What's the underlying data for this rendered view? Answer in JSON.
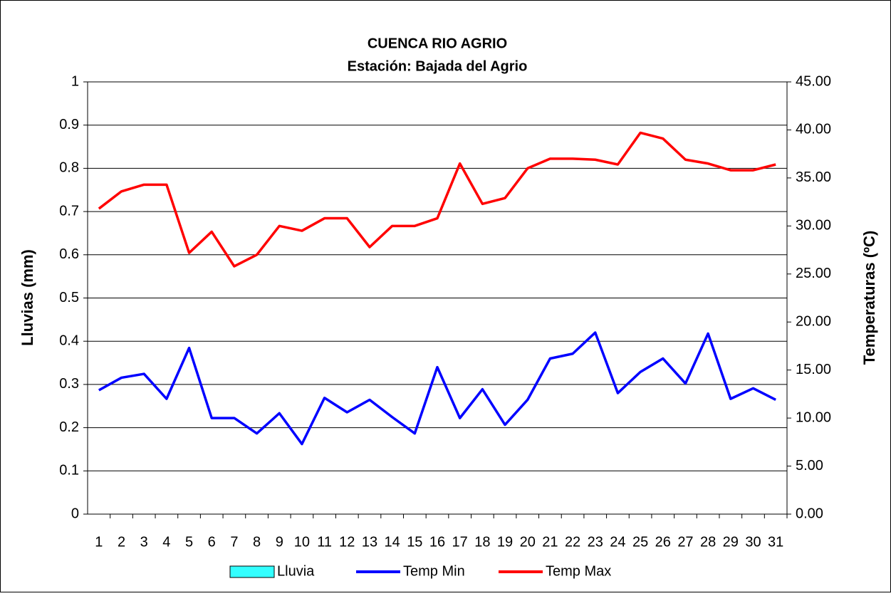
{
  "chart_data": {
    "type": "bar_line",
    "title": "CUENCA RIO AGRIO",
    "subtitle": "Estación: Bajada del Agrio",
    "ylabel": "Lluvias (mm)",
    "y2label": "Temperaturas (ºC)",
    "categories": [
      "1",
      "2",
      "3",
      "4",
      "5",
      "6",
      "7",
      "8",
      "9",
      "10",
      "11",
      "12",
      "13",
      "14",
      "15",
      "16",
      "17",
      "18",
      "19",
      "20",
      "21",
      "22",
      "23",
      "24",
      "25",
      "26",
      "27",
      "28",
      "29",
      "30",
      "31"
    ],
    "ylim": [
      0,
      1
    ],
    "yticks": [
      0,
      0.1,
      0.2,
      0.3,
      0.4,
      0.5,
      0.6,
      0.7,
      0.8,
      0.9,
      1
    ],
    "y2lim": [
      0,
      45
    ],
    "y2ticks": [
      {
        "value": 0,
        "label": "0.00"
      },
      {
        "value": 5,
        "label": "5.00"
      },
      {
        "value": 10,
        "label": "10.00"
      },
      {
        "value": 15,
        "label": "15.00"
      },
      {
        "value": 20,
        "label": "20.00"
      },
      {
        "value": 25,
        "label": "25.00"
      },
      {
        "value": 30,
        "label": "30.00"
      },
      {
        "value": 35,
        "label": "35.00"
      },
      {
        "value": 40,
        "label": "40.00"
      },
      {
        "value": 45,
        "label": "45.00"
      }
    ],
    "grid": true,
    "legend": "bottom",
    "series": [
      {
        "name": "Lluvia",
        "type": "bar",
        "color": "#33ffff",
        "values": [
          0,
          0,
          0,
          0,
          0,
          0,
          0,
          0,
          0,
          0,
          0,
          0,
          0,
          0,
          0,
          0,
          0,
          0,
          0,
          0,
          0,
          0,
          0,
          0,
          0,
          0,
          0,
          0,
          0,
          0,
          0
        ]
      },
      {
        "name": "Temp Min",
        "type": "line",
        "axis": "y2",
        "color": "#0000ff",
        "values": [
          12.9,
          14.2,
          14.6,
          12.0,
          17.3,
          10.0,
          10.0,
          8.4,
          10.5,
          7.3,
          12.1,
          10.6,
          11.9,
          10.1,
          8.4,
          15.3,
          10.0,
          13.0,
          9.3,
          11.9,
          16.2,
          16.7,
          18.9,
          12.6,
          14.8,
          16.2,
          13.6,
          18.8,
          12.0,
          13.1,
          11.9
        ]
      },
      {
        "name": "Temp Max",
        "type": "line",
        "axis": "y2",
        "color": "#ff0000",
        "values": [
          31.8,
          33.6,
          34.3,
          34.3,
          27.2,
          29.4,
          25.8,
          27.0,
          30.0,
          29.5,
          30.8,
          30.8,
          27.8,
          30.0,
          30.0,
          30.8,
          36.5,
          32.3,
          32.9,
          36.0,
          37.0,
          37.0,
          36.9,
          36.4,
          39.7,
          39.1,
          36.9,
          36.5,
          35.8,
          35.8,
          36.4
        ]
      }
    ]
  }
}
